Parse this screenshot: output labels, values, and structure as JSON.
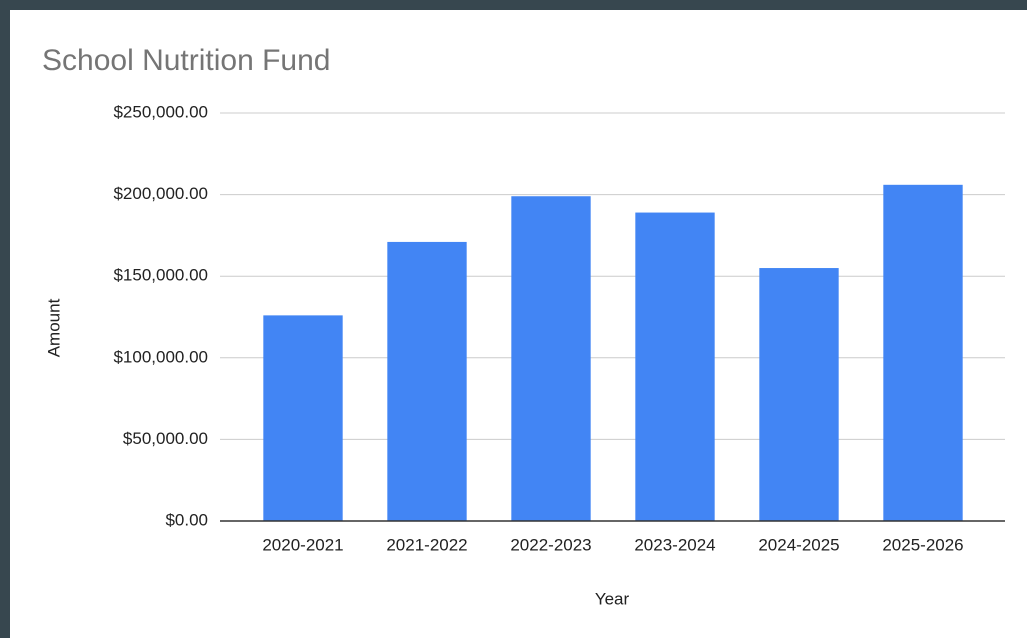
{
  "chart_data": {
    "type": "bar",
    "title": "School Nutrition Fund",
    "x_label": "Year",
    "y_label": "Amount",
    "categories": [
      "2020-2021",
      "2021-2022",
      "2022-2023",
      "2023-2024",
      "2024-2025",
      "2025-2026"
    ],
    "values": [
      126000,
      171000,
      199000,
      189000,
      155000,
      206000
    ],
    "color": "#4285f4",
    "ylim": [
      0,
      250000
    ],
    "yticks": [
      {
        "value": 0,
        "label": "$0.00"
      },
      {
        "value": 50000,
        "label": "$50,000.00"
      },
      {
        "value": 100000,
        "label": "$100,000.00"
      },
      {
        "value": 150000,
        "label": "$150,000.00"
      },
      {
        "value": 200000,
        "label": "$200,000.00"
      },
      {
        "value": 250000,
        "label": "$250,000.00"
      }
    ],
    "grid": true
  }
}
